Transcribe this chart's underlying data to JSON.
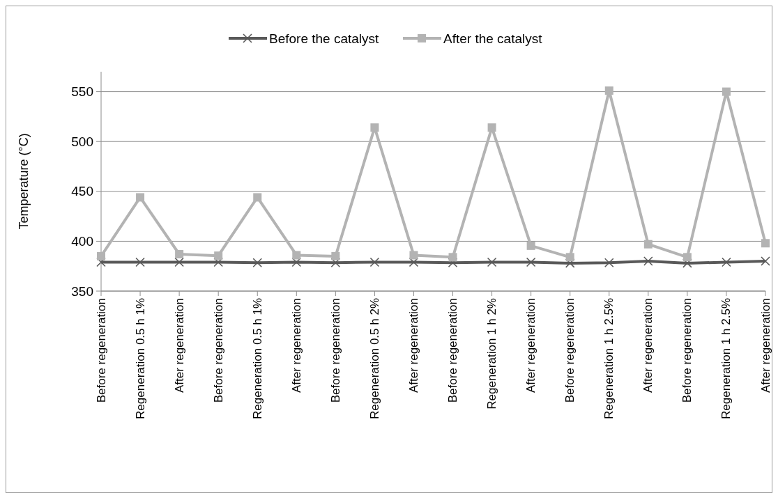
{
  "chart_data": {
    "type": "line",
    "ylabel": "Temperature (°C)",
    "categories": [
      "Before regeneration",
      "Regeneration 0.5 h 1%",
      "After regeneration",
      "Before regeneration",
      "Regeneration 0.5 h 1%",
      "After regeneration",
      "Before regeneration",
      "Regeneration 0.5 h 2%",
      "After regeneration",
      "Before regeneration",
      "Regeneration 1 h 2%",
      "After regeneration",
      "Before regeneration",
      "Regeneration 1 h 2.5%",
      "After regeneration",
      "Before regeneration",
      "Regeneration 1 h 2.5%",
      "After regeneration"
    ],
    "series": [
      {
        "name": "Before the catalyst",
        "color": "#595959",
        "marker": "cross",
        "values": [
          379,
          379,
          379,
          379,
          378.5,
          379,
          378.5,
          379,
          379,
          378.5,
          379,
          379,
          378,
          378.5,
          380,
          378,
          379,
          380
        ]
      },
      {
        "name": "After the catalyst",
        "color": "#b3b3b3",
        "marker": "square",
        "values": [
          385,
          444,
          387,
          385.5,
          444,
          386,
          385,
          514,
          386,
          384,
          514,
          395.5,
          384,
          551,
          397,
          384,
          550,
          398
        ]
      }
    ],
    "ylim": [
      350,
      570
    ],
    "yticks": [
      350,
      400,
      450,
      500,
      550
    ],
    "grid": "y",
    "legend": "top"
  }
}
